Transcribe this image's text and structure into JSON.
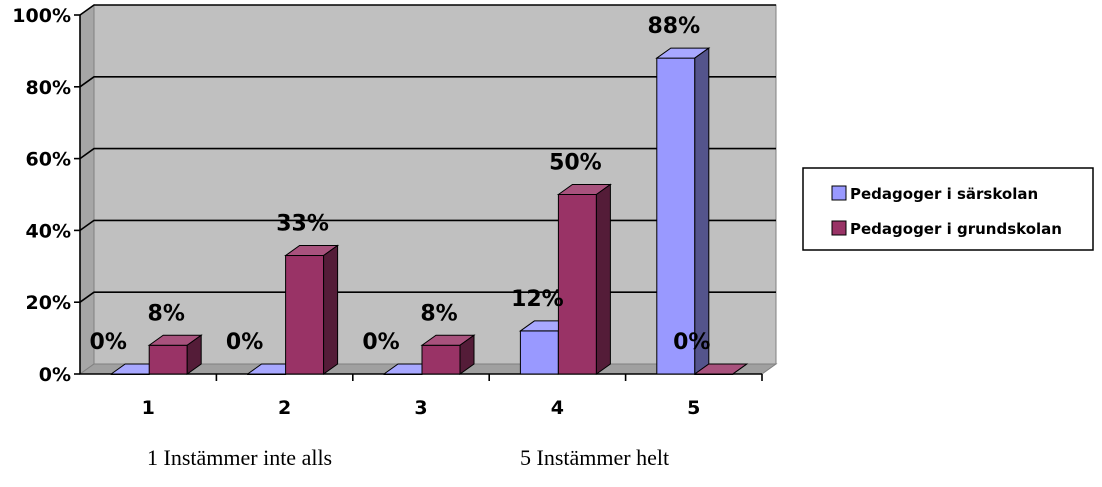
{
  "chart_data": {
    "type": "bar",
    "categories": [
      "1",
      "2",
      "3",
      "4",
      "5"
    ],
    "series": [
      {
        "name": "Pedagoger i särskolan",
        "values": [
          0,
          0,
          0,
          12,
          88
        ],
        "labels": [
          "0%",
          "0%",
          "0%",
          "12%",
          "88%"
        ],
        "color": "#9999ff"
      },
      {
        "name": "Pedagoger i grundskolan",
        "values": [
          8,
          33,
          8,
          50,
          0
        ],
        "labels": [
          "8%",
          "33%",
          "8%",
          "50%",
          "0%"
        ],
        "color": "#993366"
      }
    ],
    "ylim": [
      0,
      100
    ],
    "yticks": [
      "0%",
      "20%",
      "40%",
      "60%",
      "80%",
      "100%"
    ],
    "grid": true,
    "legend_position": "right",
    "plot_background": "#c0c0c0"
  },
  "notes": {
    "left": "1 Instämmer inte alls",
    "right": "5 Instämmer helt"
  }
}
